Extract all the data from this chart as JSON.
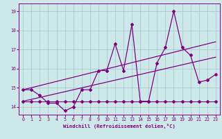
{
  "xlabel": "Windchill (Refroidissement éolien,°C)",
  "background_color": "#cce8e8",
  "plot_bg_color": "#cce8e8",
  "line_color": "#800080",
  "grid_color": "#aacccc",
  "x_data": [
    0,
    1,
    2,
    3,
    4,
    5,
    6,
    7,
    8,
    9,
    10,
    11,
    12,
    13,
    14,
    15,
    16,
    17,
    18,
    19,
    20,
    21,
    22,
    23
  ],
  "y_main": [
    14.9,
    14.9,
    14.6,
    14.2,
    14.2,
    13.8,
    14.0,
    14.9,
    14.9,
    15.9,
    15.9,
    17.3,
    15.9,
    18.3,
    14.3,
    14.3,
    16.3,
    17.1,
    19.0,
    17.1,
    16.7,
    15.3,
    15.4,
    15.7
  ],
  "y_flat": [
    14.3,
    14.3,
    14.3,
    14.3,
    14.3,
    14.3,
    14.3,
    14.3,
    14.3,
    14.3,
    14.3,
    14.3,
    14.3,
    14.3,
    14.3,
    14.3,
    14.3,
    14.3,
    14.3,
    14.3,
    14.3,
    14.3,
    14.3,
    14.3
  ],
  "trend1_x": [
    0,
    23
  ],
  "trend1_y": [
    14.9,
    17.4
  ],
  "trend2_x": [
    0,
    23
  ],
  "trend2_y": [
    14.3,
    16.6
  ],
  "ylim": [
    13.6,
    19.4
  ],
  "xlim": [
    -0.5,
    23.5
  ],
  "yticks": [
    14,
    15,
    16,
    17,
    18,
    19
  ],
  "xticks": [
    0,
    1,
    2,
    3,
    4,
    5,
    6,
    7,
    8,
    9,
    10,
    11,
    12,
    13,
    14,
    15,
    16,
    17,
    18,
    19,
    20,
    21,
    22,
    23
  ]
}
